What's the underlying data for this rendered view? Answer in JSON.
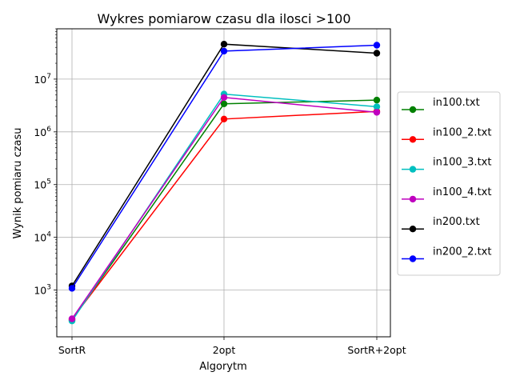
{
  "chart_data": {
    "type": "line",
    "title": "Wykres pomiarow czasu dla ilosci >100",
    "xlabel": "Algorytm",
    "ylabel": "Wynik pomiaru czasu",
    "yscale": "log",
    "ylim": [
      130,
      90000000
    ],
    "grid": true,
    "legend_position": "right",
    "categories": [
      "SortR",
      "2opt",
      "SortR+2opt"
    ],
    "yticks": [
      {
        "value": 1000,
        "base": "10",
        "exp": "3"
      },
      {
        "value": 10000,
        "base": "10",
        "exp": "4"
      },
      {
        "value": 100000,
        "base": "10",
        "exp": "5"
      },
      {
        "value": 1000000,
        "base": "10",
        "exp": "6"
      },
      {
        "value": 10000000,
        "base": "10",
        "exp": "7"
      }
    ],
    "series": [
      {
        "name": "in100.txt",
        "color": "#008000",
        "values": [
          270,
          3400000,
          4000000
        ]
      },
      {
        "name": "in100_2.txt",
        "color": "#ff0000",
        "values": [
          280,
          1750000,
          2450000
        ]
      },
      {
        "name": "in100_3.txt",
        "color": "#00bfbf",
        "values": [
          260,
          5200000,
          3000000
        ]
      },
      {
        "name": "in100_4.txt",
        "color": "#bf00bf",
        "values": [
          285,
          4500000,
          2350000
        ]
      },
      {
        "name": "in200.txt",
        "color": "#000000",
        "values": [
          1200,
          46000000,
          31000000
        ]
      },
      {
        "name": "in200_2.txt",
        "color": "#0000ff",
        "values": [
          1080,
          34000000,
          44000000
        ]
      }
    ]
  }
}
